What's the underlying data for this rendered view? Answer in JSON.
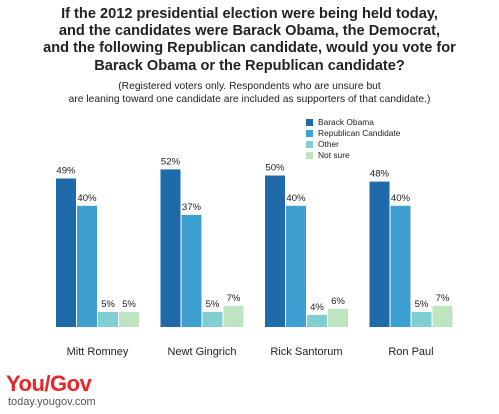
{
  "title_lines": [
    "If the 2012 presidential election were being held today,",
    "and the candidates were Barack Obama, the Democrat,",
    "and the following Republican candidate, would you vote for",
    "Barack Obama or the Republican candidate?"
  ],
  "subtitle_lines": [
    "(Registered voters only. Respondents who are unsure but",
    "are leaning toward one candidate are included as supporters of that candidate.)"
  ],
  "brand": {
    "logo_you": "You",
    "logo_slash": "/",
    "logo_gov": "Gov",
    "site": "today.yougov.com",
    "logo_color": "#e8262a"
  },
  "chart_data": {
    "type": "bar",
    "categories": [
      "Mitt Romney",
      "Newt Gingrich",
      "Rick Santorum",
      "Ron Paul"
    ],
    "series": [
      {
        "name": "Barack Obama",
        "values": [
          49,
          52,
          50,
          48
        ],
        "color": "#1f6aa8"
      },
      {
        "name": "Republican Candidate",
        "values": [
          40,
          37,
          40,
          40
        ],
        "color": "#3da0d0"
      },
      {
        "name": "Other",
        "values": [
          5,
          5,
          4,
          5
        ],
        "color": "#7fcfd2"
      },
      {
        "name": "Not sure",
        "values": [
          5,
          7,
          6,
          7
        ],
        "color": "#bfe5c0"
      }
    ],
    "value_suffix": "%",
    "legend_position": "top-right",
    "grid": false,
    "ylim": [
      0,
      60
    ]
  }
}
